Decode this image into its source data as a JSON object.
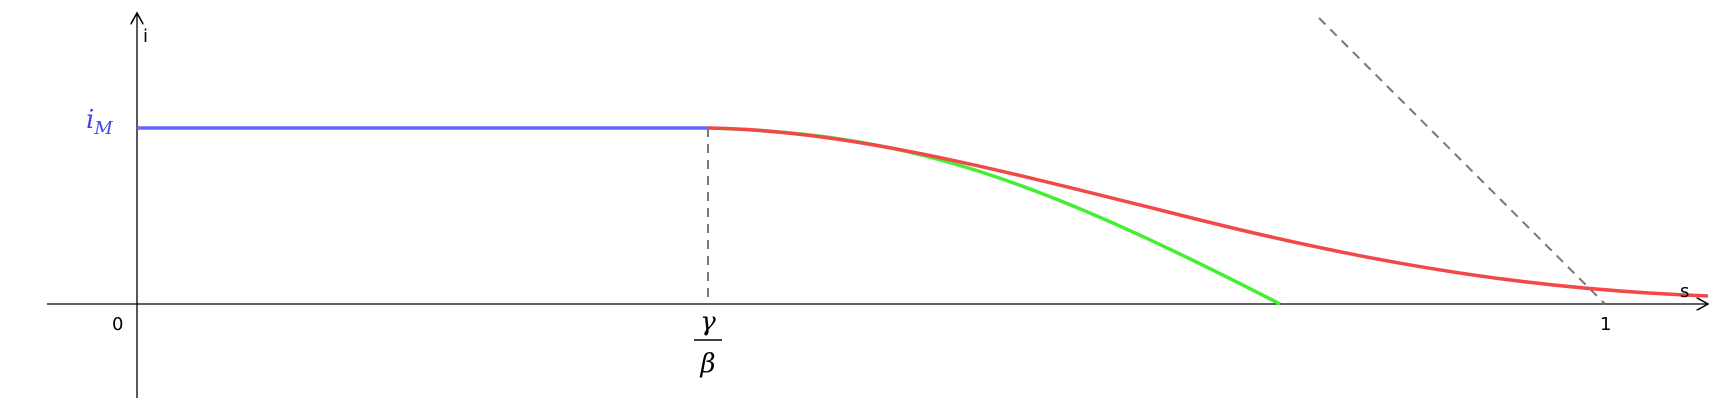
{
  "axes": {
    "y_label": "i",
    "x_label": "s",
    "origin": "0",
    "x_tick": "1"
  },
  "labels": {
    "i_max": {
      "base": "i",
      "subscript": "M"
    },
    "threshold": {
      "numerator": "γ",
      "denominator": "β"
    }
  }
}
